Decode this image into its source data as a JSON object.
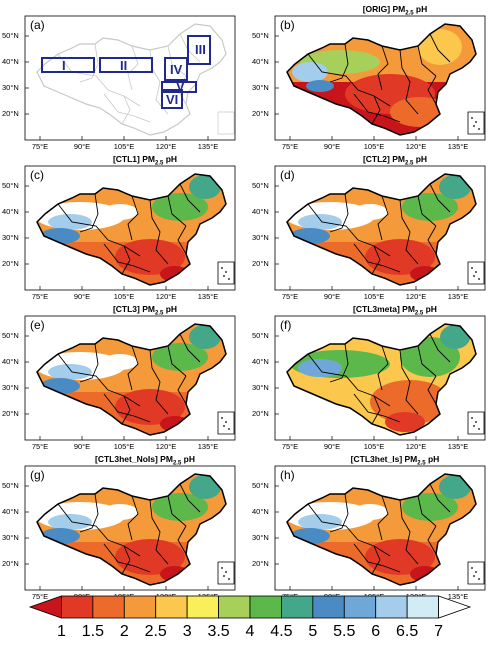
{
  "panels": [
    {
      "label": "(a)",
      "title": "",
      "type": "regions"
    },
    {
      "label": "(b)",
      "title": "[ORIG] PM",
      "sub": "2.5",
      "suffix": " pH",
      "variant": "orig"
    },
    {
      "label": "(c)",
      "title": "[CTL1] PM",
      "sub": "2.5",
      "suffix": " pH",
      "variant": "ctl"
    },
    {
      "label": "(d)",
      "title": "[CTL2] PM",
      "sub": "2.5",
      "suffix": " pH",
      "variant": "ctl"
    },
    {
      "label": "(e)",
      "title": "[CTL3] PM",
      "sub": "2.5",
      "suffix": " pH",
      "variant": "ctl"
    },
    {
      "label": "(f)",
      "title": "[CTL3meta] PM",
      "sub": "2.5",
      "suffix": " pH",
      "variant": "meta"
    },
    {
      "label": "(g)",
      "title": "[CTL3het_NoIs] PM",
      "sub": "2.5",
      "suffix": " pH",
      "variant": "ctl"
    },
    {
      "label": "(h)",
      "title": "[CTL3het_Is] PM",
      "sub": "2.5",
      "suffix": " pH",
      "variant": "ctl"
    }
  ],
  "lat_ticks": [
    "50°N",
    "40°N",
    "30°N",
    "20°N"
  ],
  "lon_ticks": [
    "75°E",
    "90°E",
    "105°E",
    "120°E",
    "135°E"
  ],
  "regions": [
    "I",
    "II",
    "III",
    "IV",
    "V",
    "VI"
  ],
  "colorbar": {
    "labels": [
      "1",
      "1.5",
      "2",
      "2.5",
      "3",
      "3.5",
      "4",
      "4.5",
      "5",
      "5.5",
      "6",
      "6.5",
      "7"
    ],
    "colors": [
      "#c8141b",
      "#e03a27",
      "#ec6a2a",
      "#f59a3a",
      "#fbc74c",
      "#f8ef5a",
      "#a7d05a",
      "#5db84c",
      "#44a78a",
      "#4b8bc4",
      "#6fa8d8",
      "#a3cdea",
      "#d2ecf6"
    ]
  }
}
